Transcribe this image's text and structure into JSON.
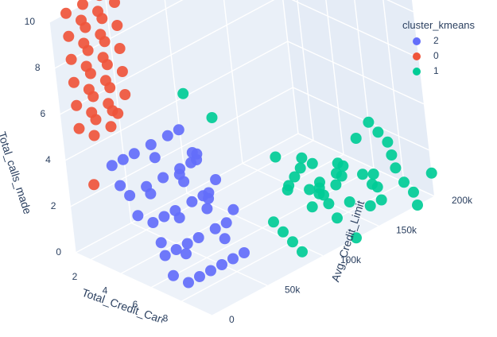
{
  "chart_data": {
    "type": "scatter",
    "title": "",
    "xlabel": "Total_Credit_Cards",
    "ylabel": "Avg_Credit_Limit",
    "zlabel": "Total_calls_made",
    "x_ticks": [
      "2",
      "4",
      "6",
      "8"
    ],
    "y_ticks": [
      "0",
      "50k",
      "100k",
      "150k",
      "200k"
    ],
    "z_ticks": [
      "0",
      "2",
      "4",
      "6",
      "8",
      "10"
    ],
    "xlim": [
      1,
      10
    ],
    "ylim": [
      0,
      200000
    ],
    "zlim": [
      0,
      10
    ],
    "legend_title": "cluster_kmeans",
    "legend_placement": "top-right",
    "series": [
      {
        "name": "2",
        "color": "#636efa",
        "points": [
          [
            3,
            15000,
            4
          ],
          [
            3,
            25000,
            4
          ],
          [
            3,
            35000,
            4
          ],
          [
            3,
            50000,
            4
          ],
          [
            3,
            65000,
            4
          ],
          [
            3,
            75000,
            4
          ],
          [
            4,
            15000,
            3
          ],
          [
            4,
            30000,
            3
          ],
          [
            4,
            45000,
            3
          ],
          [
            4,
            60000,
            3
          ],
          [
            4,
            70000,
            3
          ],
          [
            4,
            75000,
            3
          ],
          [
            5,
            20000,
            2
          ],
          [
            5,
            30000,
            2
          ],
          [
            5,
            40000,
            2
          ],
          [
            5,
            55000,
            2
          ],
          [
            5,
            65000,
            2
          ],
          [
            5,
            70000,
            2
          ],
          [
            6,
            15000,
            1
          ],
          [
            6,
            25000,
            1
          ],
          [
            6,
            35000,
            1
          ],
          [
            6,
            45000,
            1
          ],
          [
            6,
            60000,
            1
          ],
          [
            6,
            70000,
            1
          ],
          [
            7,
            20000,
            0
          ],
          [
            7,
            30000,
            0
          ],
          [
            7,
            40000,
            0
          ],
          [
            7,
            50000,
            0
          ],
          [
            7,
            60000,
            0
          ],
          [
            7,
            70000,
            0
          ],
          [
            3,
            20000,
            3
          ],
          [
            4,
            20000,
            2
          ],
          [
            5,
            25000,
            1
          ],
          [
            6,
            20000,
            0
          ],
          [
            4,
            40000,
            4
          ],
          [
            5,
            50000,
            3
          ],
          [
            6,
            55000,
            2
          ],
          [
            7,
            55000,
            1
          ],
          [
            5,
            60000,
            4
          ],
          [
            6,
            65000,
            3
          ],
          [
            7,
            65000,
            2
          ],
          [
            3,
            45000,
            2
          ],
          [
            4,
            55000,
            1
          ],
          [
            5,
            45000,
            0
          ],
          [
            2,
            100000,
            2
          ],
          [
            6,
            35000,
            4
          ],
          [
            7,
            45000,
            3
          ]
        ]
      },
      {
        "name": "0",
        "color": "#ef553b",
        "points": [
          [
            1,
            15000,
            10
          ],
          [
            1,
            15000,
            9
          ],
          [
            1,
            15000,
            8
          ],
          [
            1,
            15000,
            7
          ],
          [
            1,
            15000,
            6
          ],
          [
            1,
            15000,
            5
          ],
          [
            2,
            15000,
            10
          ],
          [
            2,
            15000,
            9
          ],
          [
            2,
            15000,
            8
          ],
          [
            2,
            15000,
            7
          ],
          [
            2,
            15000,
            6
          ],
          [
            2,
            15000,
            5
          ],
          [
            1,
            30000,
            10
          ],
          [
            1,
            30000,
            9
          ],
          [
            1,
            30000,
            8
          ],
          [
            1,
            30000,
            7
          ],
          [
            1,
            30000,
            6
          ],
          [
            1,
            30000,
            5
          ],
          [
            2,
            30000,
            10
          ],
          [
            2,
            30000,
            9
          ],
          [
            2,
            30000,
            8
          ],
          [
            2,
            30000,
            7
          ],
          [
            2,
            30000,
            6
          ],
          [
            2,
            30000,
            5
          ],
          [
            1,
            45000,
            10
          ],
          [
            1,
            45000,
            9
          ],
          [
            1,
            45000,
            8
          ],
          [
            1,
            45000,
            7
          ],
          [
            1,
            45000,
            6
          ],
          [
            1,
            45000,
            5
          ],
          [
            2,
            45000,
            10
          ],
          [
            2,
            45000,
            9
          ],
          [
            2,
            45000,
            8
          ],
          [
            2,
            45000,
            7
          ],
          [
            2,
            45000,
            6
          ],
          [
            3,
            25000,
            6
          ],
          [
            2,
            10000,
            3
          ]
        ]
      },
      {
        "name": "1",
        "color": "#00cc96",
        "points": [
          [
            5,
            180000,
            0
          ],
          [
            5,
            150000,
            1
          ],
          [
            5,
            130000,
            2
          ],
          [
            6,
            190000,
            0
          ],
          [
            6,
            170000,
            1
          ],
          [
            6,
            140000,
            2
          ],
          [
            7,
            185000,
            0
          ],
          [
            7,
            160000,
            1
          ],
          [
            7,
            120000,
            2
          ],
          [
            8,
            200000,
            0
          ],
          [
            8,
            175000,
            1
          ],
          [
            8,
            150000,
            2
          ],
          [
            9,
            195000,
            0
          ],
          [
            9,
            165000,
            1
          ],
          [
            9,
            130000,
            2
          ],
          [
            10,
            185000,
            0
          ],
          [
            10,
            155000,
            1
          ],
          [
            10,
            110000,
            2
          ],
          [
            8,
            100000,
            0
          ],
          [
            9,
            95000,
            0
          ],
          [
            10,
            130000,
            0
          ],
          [
            8,
            120000,
            1
          ],
          [
            6,
            110000,
            0
          ],
          [
            7,
            105000,
            0
          ],
          [
            10,
            200000,
            1
          ],
          [
            9,
            180000,
            2
          ],
          [
            10,
            170000,
            2
          ],
          [
            8,
            190000,
            2
          ],
          [
            7,
            195000,
            2
          ],
          [
            6,
            155000,
            0
          ],
          [
            5,
            165000,
            0
          ],
          [
            6,
            125000,
            1
          ],
          [
            9,
            140000,
            1
          ],
          [
            8,
            140000,
            0
          ],
          [
            7,
            140000,
            1
          ],
          [
            10,
            145000,
            1
          ],
          [
            9,
            115000,
            2
          ],
          [
            5,
            200000,
            1
          ],
          [
            6,
            200000,
            2
          ],
          [
            4,
            70000,
            6
          ],
          [
            5,
            80000,
            5
          ],
          [
            10,
            95000,
            3
          ],
          [
            9,
            90000,
            3
          ],
          [
            10,
            100000,
            4
          ]
        ]
      }
    ]
  }
}
